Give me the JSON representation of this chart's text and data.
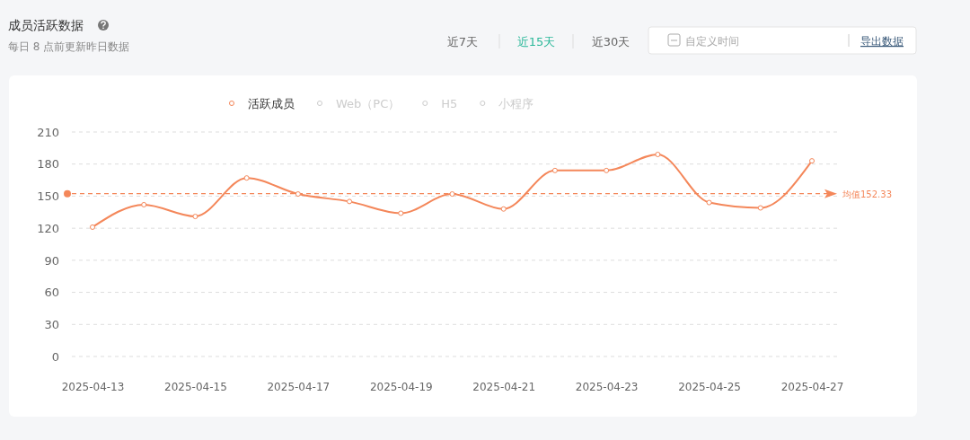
{
  "chart_data": {
    "type": "line",
    "title": "成员活跃数据",
    "subtitle": "每日 8 点前更新昨日数据",
    "annotations": [
      "近7天",
      "近15天",
      "近30天",
      "自定义时间",
      "导出数据"
    ],
    "categories": [
      "2025-04-13",
      null,
      "2025-04-15",
      null,
      "2025-04-17",
      null,
      "2025-04-19",
      null,
      "2025-04-21",
      null,
      "2025-04-23",
      null,
      "2025-04-25",
      null,
      "2025-04-27"
    ],
    "series": [
      {
        "name": "活跃成员",
        "color": "#f4875a",
        "values": [
          121,
          142,
          131,
          167,
          152,
          145,
          134,
          152,
          138,
          174,
          174,
          189,
          144,
          139,
          183
        ]
      },
      {
        "name": "Web（PC）",
        "color": "#cccccc",
        "values": [
          null,
          null,
          null,
          null,
          null,
          null,
          null,
          null,
          null,
          null,
          null,
          null,
          null,
          null,
          null
        ]
      },
      {
        "name": "H5",
        "color": "#cccccc",
        "values": [
          null,
          null,
          null,
          null,
          null,
          null,
          null,
          null,
          null,
          null,
          null,
          null,
          null,
          null,
          null
        ]
      },
      {
        "name": "小程序",
        "color": "#cccccc",
        "values": [
          null,
          null,
          null,
          null,
          null,
          null,
          null,
          null,
          null,
          null,
          null,
          null,
          null,
          null,
          null
        ]
      }
    ],
    "ylim": [
      0,
      210
    ],
    "yticks": [
      0,
      30,
      60,
      90,
      120,
      150,
      180,
      210
    ],
    "ref_lines": [
      {
        "axis": "y",
        "value": 152.33,
        "label": "均值152.33",
        "color": "#f4875a",
        "line_style": "dashed"
      }
    ],
    "grid": "y",
    "legend": "top",
    "marker": "circle",
    "line_style": "solid"
  }
}
